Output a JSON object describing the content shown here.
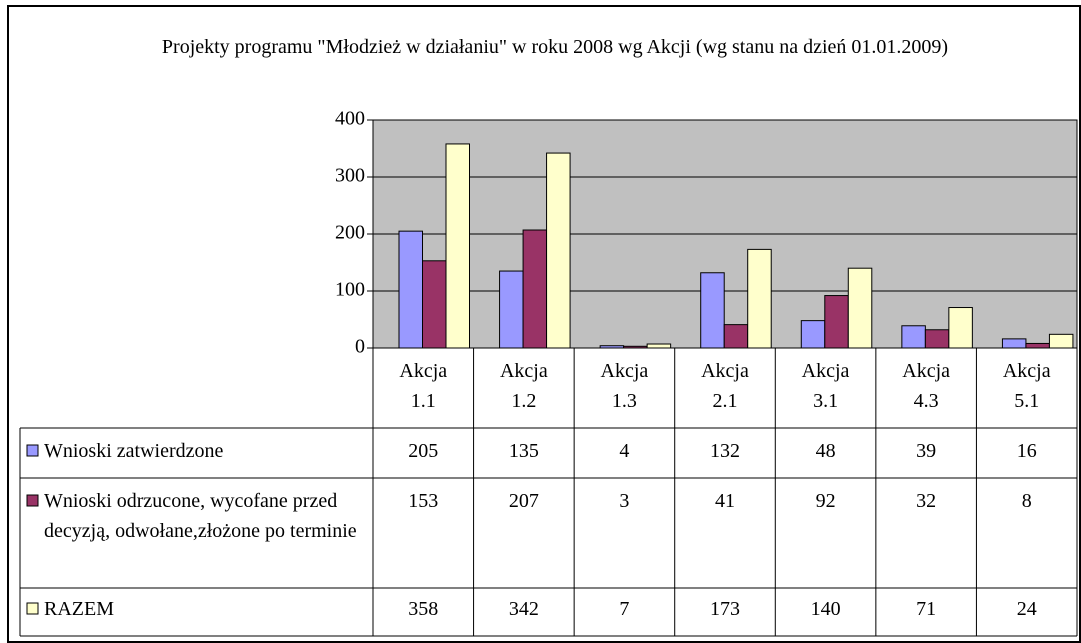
{
  "chart_data": {
    "type": "bar",
    "title": "Projekty programu \"Młodzież w działaniu\" w roku 2008 wg Akcji (wg stanu na dzień 01.01.2009)",
    "categories": [
      "Akcja 1.1",
      "Akcja 1.2",
      "Akcja 1.3",
      "Akcja 2.1",
      "Akcja 3.1",
      "Akcja 4.3",
      "Akcja 5.1"
    ],
    "series": [
      {
        "name": "Wnioski zatwierdzone",
        "color": "#9999ff",
        "values": [
          205,
          135,
          4,
          132,
          48,
          39,
          16
        ]
      },
      {
        "name": "Wnioski odrzucone, wycofane przed decyzją, odwołane,złożone po terminie",
        "color": "#993366",
        "values": [
          153,
          207,
          3,
          41,
          92,
          32,
          8
        ]
      },
      {
        "name": "RAZEM",
        "color": "#ffffcc",
        "values": [
          358,
          342,
          7,
          173,
          140,
          71,
          24
        ]
      }
    ],
    "ylim": [
      0,
      400
    ],
    "yticks": [
      0,
      100,
      200,
      300,
      400
    ],
    "grid": true,
    "plot_background": "#c0c0c0",
    "data_table": true
  }
}
